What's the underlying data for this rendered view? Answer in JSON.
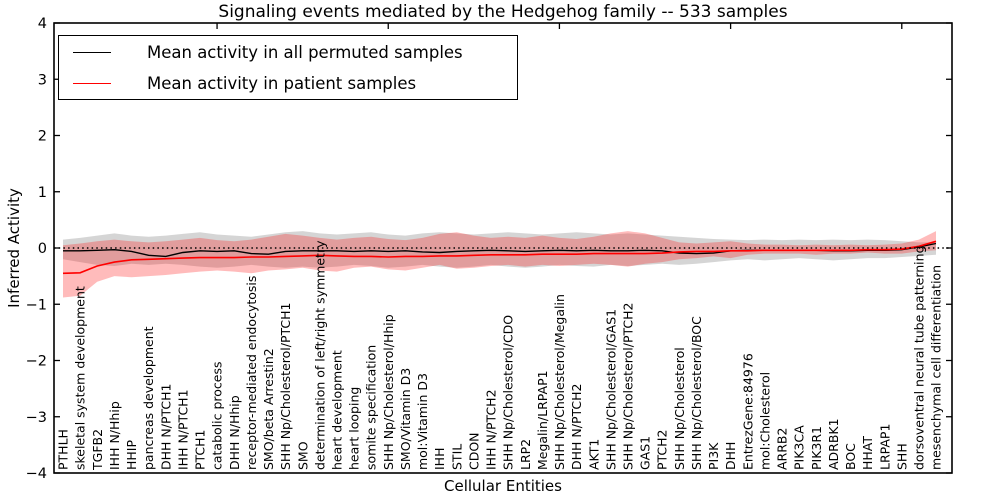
{
  "title": "Signaling events mediated by the Hedgehog family -- 533 samples",
  "axes": {
    "ylabel": "Inferred Activity",
    "xlabel": "Cellular Entities",
    "ylim": [
      -4,
      4
    ],
    "yticks": [
      {
        "value": 4,
        "label": "4"
      },
      {
        "value": 3,
        "label": "3"
      },
      {
        "value": 2,
        "label": "2"
      },
      {
        "value": 1,
        "label": "1"
      },
      {
        "value": 0,
        "label": "0"
      },
      {
        "value": -1,
        "label": "−1"
      },
      {
        "value": -2,
        "label": "−2"
      },
      {
        "value": -3,
        "label": "−3"
      },
      {
        "value": -4,
        "label": "−4"
      }
    ],
    "xticks_top_positions": [
      10,
      20,
      30,
      40,
      50
    ],
    "zero_line": {
      "value": 0,
      "style": "dotted",
      "color": "#000000"
    }
  },
  "legend": {
    "items": [
      {
        "label": "Mean activity in all permuted samples",
        "color": "#000000"
      },
      {
        "label": "Mean activity in patient samples",
        "color": "#ff0000"
      }
    ]
  },
  "chart_data": {
    "type": "line",
    "title": "Signaling events mediated by the Hedgehog family -- 533 samples",
    "xlabel": "Cellular Entities",
    "ylabel": "Inferred Activity",
    "ylim": [
      -4,
      4
    ],
    "grid": false,
    "legend_position": "upper left",
    "categories": [
      "PTHLH",
      "skeletal system development",
      "TGFB2",
      "IHH N/Hhip",
      "HHIP",
      "pancreas development",
      "DHH N/PTCH1",
      "IHH N/PTCH1",
      "PTCH1",
      "catabolic process",
      "DHH N/Hhip",
      "receptor-mediated endocytosis",
      "SMO/beta Arrestin2",
      "SHH Np/Cholesterol/PTCH1",
      "SMO",
      "determination of left/right symmetry",
      "heart development",
      "heart looping",
      "somite specification",
      "SHH Np/Cholesterol/Hhip",
      "SMO/Vitamin D3",
      "mol:Vitamin D3",
      "IHH",
      "STIL",
      "CDON",
      "IHH N/PTCH2",
      "SHH Np/Cholesterol/CDO",
      "LRP2",
      "Megalin/LRPAP1",
      "SHH Np/Cholesterol/Megalin",
      "DHH N/PTCH2",
      "AKT1",
      "SHH Np/Cholesterol/GAS1",
      "SHH Np/Cholesterol/PTCH2",
      "GAS1",
      "PTCH2",
      "SHH Np/Cholesterol",
      "SHH Np/Cholesterol/BOC",
      "PI3K",
      "DHH",
      "EntrezGene:84976",
      "mol:Cholesterol",
      "ARRB2",
      "PIK3CA",
      "PIK3R1",
      "ADRBK1",
      "BOC",
      "HHAT",
      "LRPAP1",
      "SHH",
      "dorsoventral neural tube patterning",
      "mesenchymal cell differentiation"
    ],
    "series": [
      {
        "name": "Mean activity in all permuted samples",
        "color": "#000000",
        "band_color": "rgba(105,105,105,0.28)",
        "mean": [
          -0.05,
          -0.05,
          -0.04,
          -0.03,
          -0.06,
          -0.13,
          -0.15,
          -0.08,
          -0.05,
          -0.06,
          -0.05,
          -0.1,
          -0.11,
          -0.06,
          -0.05,
          -0.05,
          -0.05,
          -0.06,
          -0.05,
          -0.06,
          -0.05,
          -0.07,
          -0.08,
          -0.06,
          -0.05,
          -0.04,
          -0.05,
          -0.06,
          -0.05,
          -0.04,
          -0.05,
          -0.04,
          -0.05,
          -0.05,
          -0.04,
          -0.05,
          -0.09,
          -0.1,
          -0.09,
          -0.05,
          -0.04,
          -0.04,
          -0.04,
          -0.04,
          -0.04,
          -0.05,
          -0.05,
          -0.04,
          -0.04,
          -0.03,
          0.02,
          0.08
        ],
        "upper": [
          0.15,
          0.18,
          0.22,
          0.26,
          0.22,
          0.2,
          0.22,
          0.25,
          0.28,
          0.24,
          0.22,
          0.2,
          0.24,
          0.28,
          0.3,
          0.26,
          0.24,
          0.26,
          0.28,
          0.24,
          0.22,
          0.26,
          0.28,
          0.26,
          0.24,
          0.26,
          0.28,
          0.26,
          0.24,
          0.26,
          0.28,
          0.26,
          0.24,
          0.26,
          0.24,
          0.22,
          0.2,
          0.18,
          0.16,
          0.15,
          0.14,
          0.15,
          0.14,
          0.15,
          0.14,
          0.15,
          0.14,
          0.15,
          0.14,
          0.12,
          0.1,
          0.1
        ],
        "lower": [
          -0.2,
          -0.25,
          -0.3,
          -0.32,
          -0.28,
          -0.3,
          -0.28,
          -0.3,
          -0.33,
          -0.35,
          -0.33,
          -0.3,
          -0.33,
          -0.35,
          -0.33,
          -0.35,
          -0.33,
          -0.3,
          -0.32,
          -0.35,
          -0.33,
          -0.3,
          -0.33,
          -0.35,
          -0.33,
          -0.3,
          -0.33,
          -0.35,
          -0.33,
          -0.3,
          -0.32,
          -0.33,
          -0.3,
          -0.32,
          -0.3,
          -0.28,
          -0.3,
          -0.28,
          -0.25,
          -0.22,
          -0.2,
          -0.22,
          -0.2,
          -0.18,
          -0.2,
          -0.22,
          -0.2,
          -0.18,
          -0.18,
          -0.16,
          -0.14,
          -0.12
        ]
      },
      {
        "name": "Mean activity in patient samples",
        "color": "#ff0000",
        "band_color": "rgba(255,30,30,0.30)",
        "mean": [
          -0.45,
          -0.44,
          -0.32,
          -0.25,
          -0.21,
          -0.2,
          -0.19,
          -0.18,
          -0.17,
          -0.17,
          -0.17,
          -0.16,
          -0.16,
          -0.15,
          -0.14,
          -0.13,
          -0.14,
          -0.15,
          -0.15,
          -0.16,
          -0.15,
          -0.15,
          -0.14,
          -0.14,
          -0.13,
          -0.12,
          -0.12,
          -0.12,
          -0.11,
          -0.11,
          -0.11,
          -0.1,
          -0.1,
          -0.1,
          -0.1,
          -0.09,
          -0.07,
          -0.06,
          -0.06,
          -0.05,
          -0.05,
          -0.04,
          -0.04,
          -0.04,
          -0.04,
          -0.04,
          -0.04,
          -0.03,
          -0.03,
          -0.02,
          0.03,
          0.12
        ],
        "upper": [
          0.05,
          0.08,
          0.12,
          0.15,
          0.12,
          0.1,
          0.12,
          0.15,
          0.18,
          0.14,
          0.12,
          0.15,
          0.2,
          0.25,
          0.22,
          0.18,
          0.15,
          0.18,
          0.2,
          0.16,
          0.14,
          0.18,
          0.25,
          0.28,
          0.22,
          0.18,
          0.2,
          0.18,
          0.22,
          0.18,
          0.16,
          0.2,
          0.26,
          0.3,
          0.26,
          0.18,
          0.1,
          0.08,
          0.1,
          0.12,
          0.08,
          0.06,
          0.06,
          0.05,
          0.06,
          0.05,
          0.06,
          0.05,
          0.06,
          0.08,
          0.15,
          0.3
        ],
        "lower": [
          -0.88,
          -0.85,
          -0.6,
          -0.5,
          -0.52,
          -0.5,
          -0.48,
          -0.45,
          -0.42,
          -0.4,
          -0.42,
          -0.45,
          -0.4,
          -0.38,
          -0.35,
          -0.4,
          -0.42,
          -0.35,
          -0.33,
          -0.38,
          -0.4,
          -0.35,
          -0.3,
          -0.37,
          -0.35,
          -0.32,
          -0.3,
          -0.33,
          -0.3,
          -0.32,
          -0.3,
          -0.28,
          -0.3,
          -0.33,
          -0.28,
          -0.25,
          -0.2,
          -0.18,
          -0.15,
          -0.18,
          -0.12,
          -0.1,
          -0.1,
          -0.1,
          -0.12,
          -0.1,
          -0.1,
          -0.08,
          -0.1,
          -0.1,
          -0.06,
          -0.04
        ]
      }
    ]
  }
}
